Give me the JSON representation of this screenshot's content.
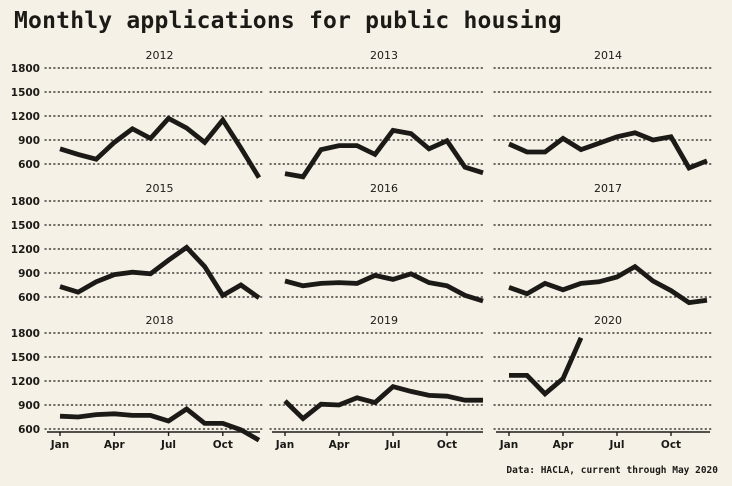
{
  "title": "Monthly applications for public housing",
  "source_note": "Data: HACLA, current through May 2020",
  "colors": {
    "background": "#f6f1e6",
    "ink": "#1b1a17"
  },
  "chart_data": {
    "type": "line",
    "title": "Monthly applications for public housing",
    "xlabel": "",
    "ylabel": "",
    "ylim": [
      450,
      1850
    ],
    "y_ticks": [
      600,
      900,
      1200,
      1500,
      1800
    ],
    "y_tick_labels": [
      "600",
      "900",
      "1200",
      "1500",
      "1800"
    ],
    "x_ticks": [
      1,
      4,
      7,
      10
    ],
    "x_tick_labels": [
      "Jan",
      "Apr",
      "Jul",
      "Oct"
    ],
    "months": [
      1,
      2,
      3,
      4,
      5,
      6,
      7,
      8,
      9,
      10,
      11,
      12
    ],
    "grid": "horizontal dotted",
    "panels": [
      {
        "name": "2012",
        "values": [
          790,
          720,
          660,
          870,
          1040,
          920,
          1170,
          1050,
          870,
          1150,
          800,
          430
        ]
      },
      {
        "name": "2013",
        "values": [
          480,
          440,
          780,
          830,
          830,
          720,
          1020,
          980,
          790,
          890,
          560,
          490
        ]
      },
      {
        "name": "2014",
        "values": [
          850,
          750,
          750,
          920,
          780,
          860,
          940,
          990,
          900,
          940,
          550,
          640
        ]
      },
      {
        "name": "2015",
        "values": [
          730,
          660,
          790,
          880,
          910,
          890,
          1060,
          1220,
          980,
          620,
          750,
          590
        ]
      },
      {
        "name": "2016",
        "values": [
          800,
          740,
          770,
          780,
          770,
          870,
          820,
          890,
          780,
          740,
          620,
          550
        ]
      },
      {
        "name": "2017",
        "values": [
          720,
          640,
          770,
          690,
          770,
          790,
          850,
          980,
          800,
          680,
          530,
          560
        ]
      },
      {
        "name": "2018",
        "values": [
          760,
          750,
          780,
          790,
          770,
          770,
          700,
          850,
          670,
          670,
          590,
          460
        ]
      },
      {
        "name": "2019",
        "values": [
          950,
          730,
          910,
          900,
          990,
          930,
          1130,
          1070,
          1020,
          1010,
          960,
          960
        ]
      },
      {
        "name": "2020",
        "values": [
          1270,
          1270,
          1040,
          1230,
          1740
        ]
      }
    ]
  }
}
